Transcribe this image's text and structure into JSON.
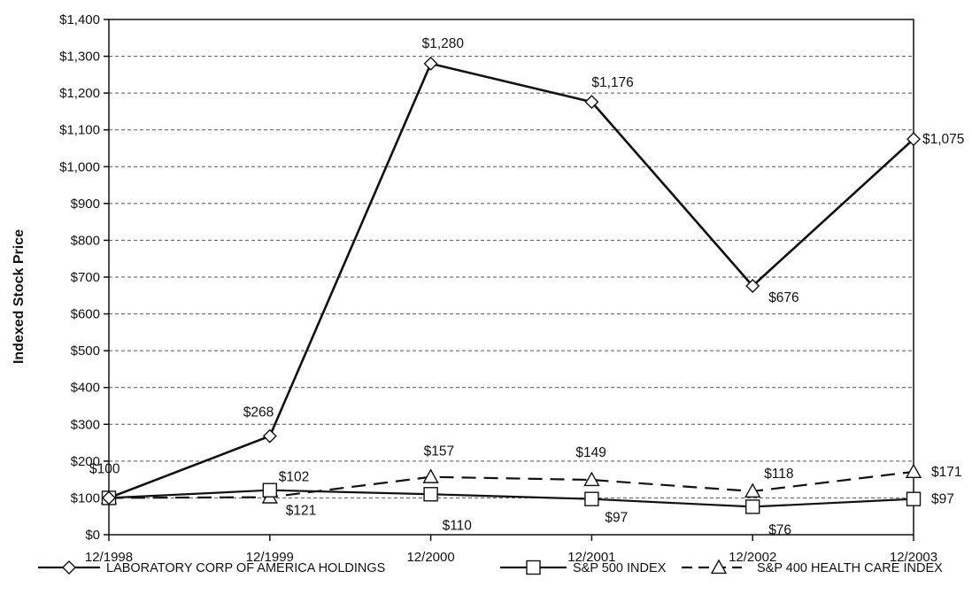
{
  "chart_data": {
    "type": "line",
    "title": "",
    "xlabel": "",
    "ylabel": "Indexed Stock Price",
    "categories": [
      "12/1998",
      "12/1999",
      "12/2000",
      "12/2001",
      "12/2002",
      "12/2003"
    ],
    "ylim": [
      0,
      1400
    ],
    "y_ticks": [
      "$0",
      "$100",
      "$200",
      "$300",
      "$400",
      "$500",
      "$600",
      "$700",
      "$800",
      "$900",
      "$1,000",
      "$1,100",
      "$1,200",
      "$1,300",
      "$1,400"
    ],
    "grid": "horizontal dashed",
    "legend_position": "bottom",
    "series": [
      {
        "name": "LABORATORY CORP OF AMERICA HOLDINGS",
        "marker": "diamond",
        "line_style": "solid",
        "values": [
          100,
          268,
          1280,
          1176,
          676,
          1075
        ],
        "labels": [
          "$100",
          "$268",
          "$1,280",
          "$1,176",
          "$676",
          "$1,075"
        ]
      },
      {
        "name": "S&P 500 INDEX",
        "marker": "square",
        "line_style": "solid",
        "values": [
          100,
          121,
          110,
          97,
          76,
          97
        ],
        "labels": [
          "",
          "$121",
          "$110",
          "$97",
          "$76",
          "$97"
        ]
      },
      {
        "name": "S&P 400 HEALTH CARE INDEX",
        "marker": "triangle",
        "line_style": "dashed",
        "values": [
          100,
          102,
          157,
          149,
          118,
          171
        ],
        "labels": [
          "",
          "$102",
          "$157",
          "$149",
          "$118",
          "$171"
        ]
      }
    ]
  }
}
